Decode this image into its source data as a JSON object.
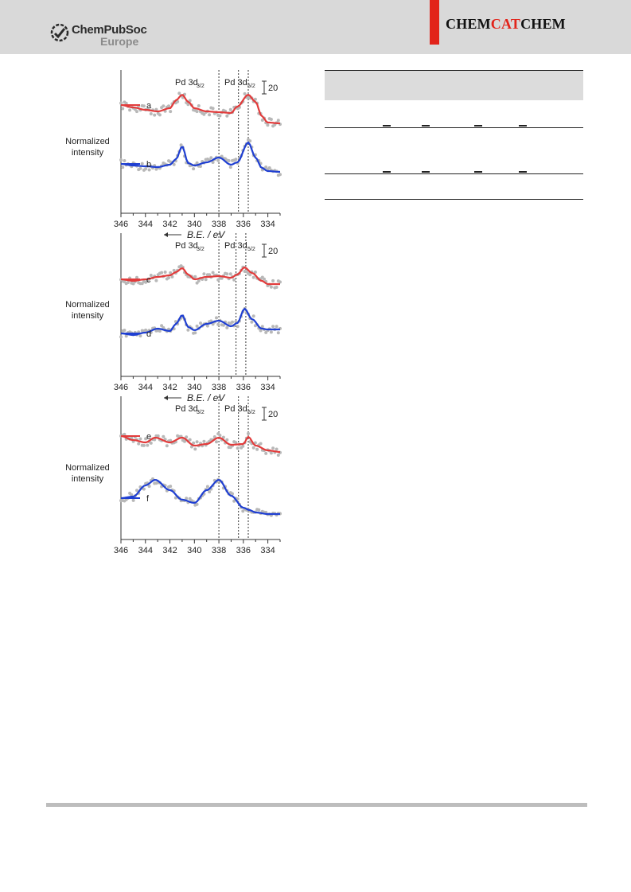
{
  "header": {
    "publisher_name": "ChemPubSoc",
    "publisher_region": "Europe",
    "journal_part1": "CHEM",
    "journal_part2": "CAT",
    "journal_part3": "CHEM",
    "accent_color": "#e2231a"
  },
  "chart_data": [
    {
      "type": "line",
      "panel": "top",
      "xlabel": "B.E. / eV",
      "ylabel": "Normalized intensity",
      "x_ticks": [
        "346",
        "344",
        "342",
        "340",
        "338",
        "336",
        "334"
      ],
      "xlim": [
        346,
        333
      ],
      "reversed_x": true,
      "peak_labels": [
        "Pd 3d",
        "3/2",
        "Pd 3d",
        "5/2"
      ],
      "scale_bar": "20",
      "reference_lines_ev": [
        338.0,
        336.4,
        335.6
      ],
      "series": [
        {
          "name": "b",
          "color": "#1f3fd2",
          "x": [
            346,
            345,
            344,
            343,
            342,
            341.5,
            341,
            340.5,
            340,
            339,
            338,
            337,
            336.5,
            335.6,
            335,
            334.5,
            334,
            333
          ],
          "y": [
            118,
            120,
            121,
            122,
            119,
            112,
            96,
            117,
            120,
            116,
            110,
            119,
            116,
            91,
            110,
            123,
            127,
            128
          ]
        },
        {
          "name": "a",
          "color": "#e23b3b",
          "x": [
            346,
            345,
            344,
            343,
            342,
            341.5,
            341,
            340.5,
            340,
            339,
            338,
            337,
            336.5,
            335.6,
            335,
            334.5,
            334,
            333
          ],
          "y": [
            44,
            47,
            50,
            52,
            48,
            38,
            31,
            40,
            48,
            52,
            53,
            54,
            46,
            31,
            40,
            58,
            66,
            67
          ]
        }
      ]
    },
    {
      "type": "line",
      "panel": "middle",
      "xlabel": "B.E. / eV",
      "ylabel": "Normalized intensity",
      "x_ticks": [
        "346",
        "344",
        "342",
        "340",
        "338",
        "336",
        "334"
      ],
      "xlim": [
        346,
        333
      ],
      "reversed_x": true,
      "peak_labels": [
        "Pd 3d",
        "3/2",
        "Pd 3d",
        "5/2"
      ],
      "scale_bar": "20",
      "reference_lines_ev": [
        338.0,
        336.6,
        335.8
      ],
      "series": [
        {
          "name": "d",
          "color": "#1f3fd2",
          "x": [
            346,
            345,
            344,
            343,
            342,
            341.5,
            341,
            340.5,
            340,
            339,
            338,
            337,
            336.5,
            335.9,
            335.3,
            334.5,
            334,
            333
          ],
          "y": [
            126,
            128,
            125,
            120,
            123,
            114,
            103,
            118,
            122,
            114,
            110,
            117,
            113,
            95,
            108,
            120,
            121,
            121
          ]
        },
        {
          "name": "c",
          "color": "#e23b3b",
          "x": [
            346,
            345,
            344,
            343,
            342,
            341.5,
            341,
            340.5,
            340,
            339,
            338,
            337,
            336.5,
            335.9,
            335.3,
            334.5,
            334,
            333
          ],
          "y": [
            58,
            60,
            58,
            55,
            53,
            49,
            44,
            52,
            58,
            55,
            54,
            56,
            52,
            43,
            50,
            60,
            64,
            64
          ]
        }
      ]
    },
    {
      "type": "line",
      "panel": "bottom",
      "xlabel": "B.E. / eV",
      "ylabel": "Normalized intensity",
      "x_ticks": [
        "346",
        "344",
        "342",
        "340",
        "338",
        "336",
        "334"
      ],
      "xlim": [
        346,
        333
      ],
      "reversed_x": true,
      "peak_labels": [
        "Pd 3d",
        "3/2",
        "Pd 3d",
        "5/2"
      ],
      "scale_bar": "20",
      "reference_lines_ev": [
        338.0,
        336.4,
        335.6
      ],
      "series": [
        {
          "name": "f",
          "color": "#1f3fd2",
          "x": [
            346,
            345,
            344,
            343.2,
            342,
            341,
            340,
            339,
            338,
            337,
            336,
            335.5,
            335,
            334,
            333
          ],
          "y": [
            128,
            126,
            112,
            105,
            118,
            130,
            134,
            118,
            105,
            125,
            140,
            143,
            146,
            148,
            148
          ]
        },
        {
          "name": "e",
          "color": "#e23b3b",
          "x": [
            346,
            345,
            344,
            343.2,
            342,
            341,
            340,
            339,
            338,
            337,
            336,
            335.6,
            335,
            334,
            333
          ],
          "y": [
            50,
            55,
            58,
            52,
            58,
            52,
            62,
            60,
            52,
            61,
            60,
            51,
            62,
            68,
            70
          ]
        }
      ]
    }
  ]
}
